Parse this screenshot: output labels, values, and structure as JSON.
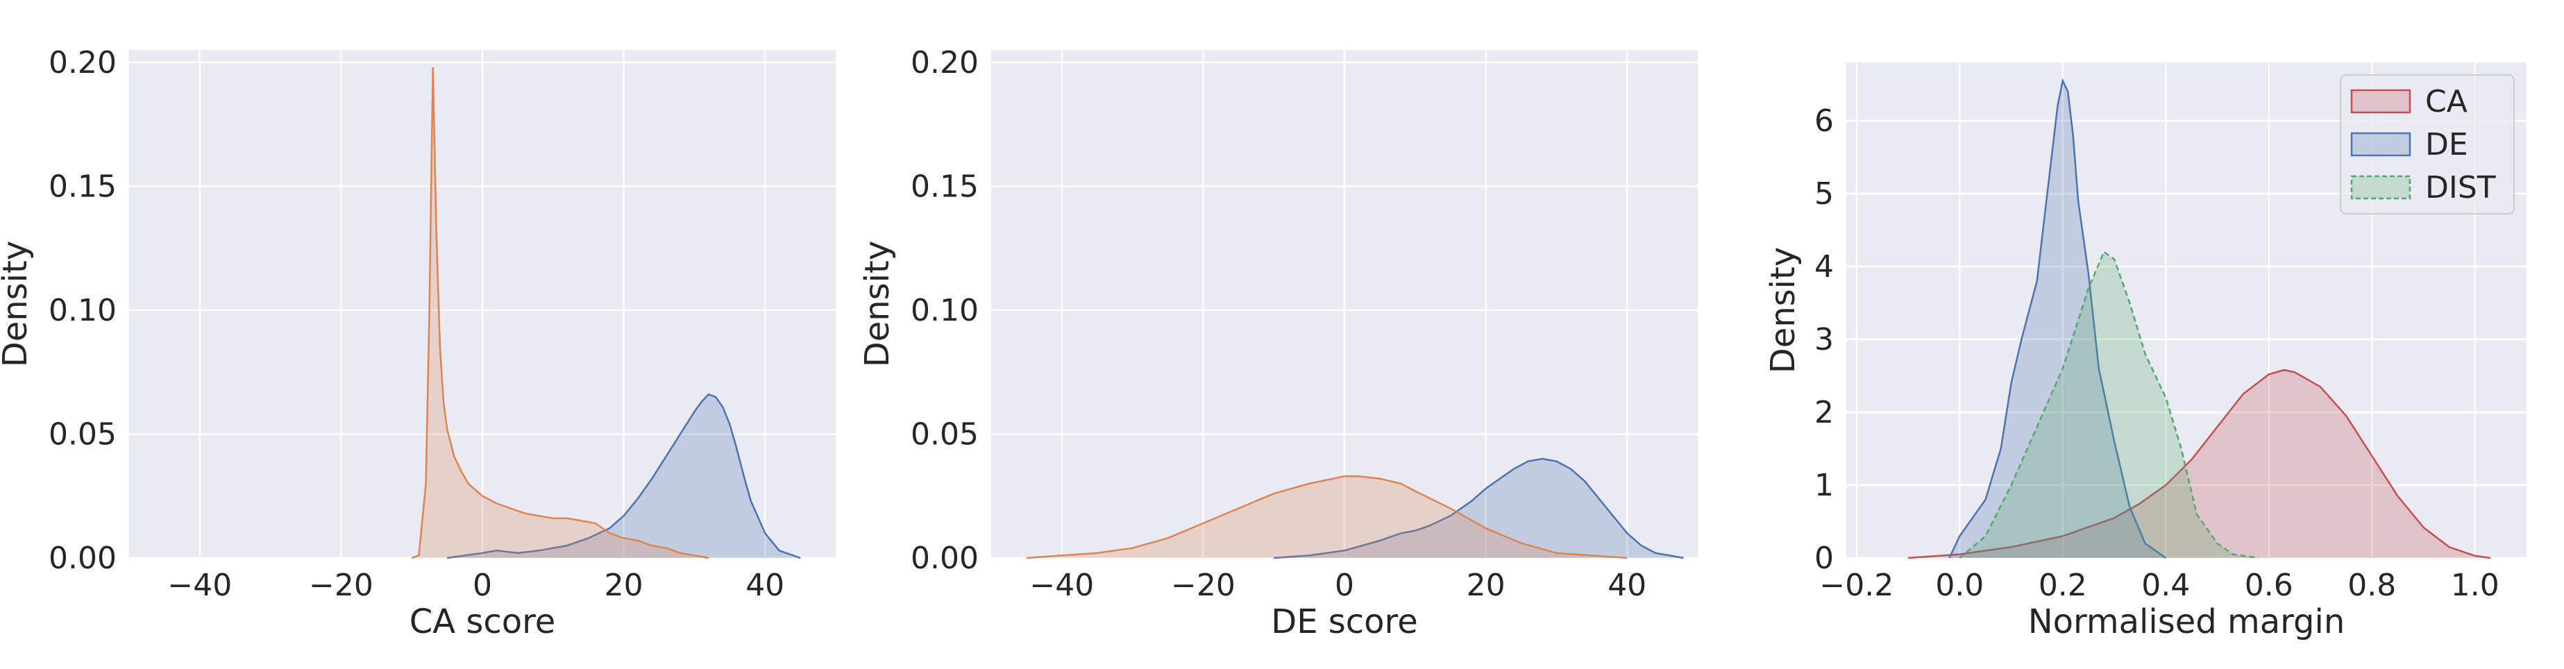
{
  "chart_data": [
    {
      "type": "area",
      "xlabel": "CA score",
      "ylabel": "Density",
      "xlim": [
        -50,
        50
      ],
      "ylim": [
        0,
        0.205
      ],
      "xticks": [
        -40,
        -20,
        0,
        20,
        40
      ],
      "xtick_labels": [
        "−40",
        "−20",
        "0",
        "20",
        "40"
      ],
      "yticks": [
        0,
        0.05,
        0.1,
        0.15,
        0.2
      ],
      "ytick_labels": [
        "0.00",
        "0.05",
        "0.10",
        "0.15",
        "0.20"
      ],
      "grid": true,
      "series": [
        {
          "color": "#4C72B0",
          "x": [
            -5,
            0,
            2,
            5,
            8,
            10,
            12,
            15,
            18,
            20,
            22,
            24,
            26,
            28,
            30,
            31,
            32,
            33,
            34,
            35,
            36,
            37,
            38,
            40,
            42,
            44,
            45
          ],
          "y": [
            0,
            0.002,
            0.003,
            0.002,
            0.003,
            0.004,
            0.005,
            0.008,
            0.012,
            0.017,
            0.024,
            0.032,
            0.041,
            0.05,
            0.059,
            0.063,
            0.066,
            0.065,
            0.061,
            0.054,
            0.044,
            0.033,
            0.023,
            0.01,
            0.003,
            0.001,
            0
          ]
        },
        {
          "color": "#DD8452",
          "x": [
            -10,
            -9,
            -8,
            -7.5,
            -7.2,
            -7,
            -6.8,
            -6.5,
            -6,
            -5.5,
            -5,
            -4,
            -3,
            -2,
            0,
            2,
            4,
            6,
            8,
            10,
            12,
            14,
            16,
            18,
            20,
            22,
            24,
            26,
            28,
            30,
            32
          ],
          "y": [
            0,
            0.001,
            0.03,
            0.1,
            0.16,
            0.198,
            0.17,
            0.13,
            0.085,
            0.063,
            0.052,
            0.041,
            0.035,
            0.03,
            0.025,
            0.022,
            0.02,
            0.018,
            0.017,
            0.016,
            0.016,
            0.015,
            0.014,
            0.01,
            0.008,
            0.007,
            0.005,
            0.004,
            0.002,
            0.001,
            0
          ]
        }
      ]
    },
    {
      "type": "area",
      "xlabel": "DE score",
      "ylabel": "Density",
      "xlim": [
        -50,
        50
      ],
      "ylim": [
        0,
        0.205
      ],
      "xticks": [
        -40,
        -20,
        0,
        20,
        40
      ],
      "xtick_labels": [
        "−40",
        "−20",
        "0",
        "20",
        "40"
      ],
      "yticks": [
        0,
        0.05,
        0.1,
        0.15,
        0.2
      ],
      "ytick_labels": [
        "0.00",
        "0.05",
        "0.10",
        "0.15",
        "0.20"
      ],
      "grid": true,
      "series": [
        {
          "color": "#4C72B0",
          "x": [
            -10,
            -5,
            0,
            5,
            8,
            10,
            12,
            15,
            18,
            20,
            22,
            24,
            26,
            28,
            30,
            32,
            34,
            36,
            38,
            40,
            42,
            44,
            46,
            48
          ],
          "y": [
            0,
            0.001,
            0.003,
            0.007,
            0.01,
            0.011,
            0.013,
            0.017,
            0.023,
            0.028,
            0.032,
            0.036,
            0.039,
            0.04,
            0.039,
            0.036,
            0.031,
            0.024,
            0.017,
            0.01,
            0.005,
            0.002,
            0.001,
            0
          ]
        },
        {
          "color": "#DD8452",
          "x": [
            -45,
            -40,
            -35,
            -30,
            -25,
            -20,
            -15,
            -10,
            -5,
            0,
            2,
            5,
            8,
            10,
            15,
            20,
            25,
            30,
            35,
            40
          ],
          "y": [
            0,
            0.001,
            0.002,
            0.004,
            0.008,
            0.014,
            0.02,
            0.026,
            0.03,
            0.033,
            0.033,
            0.032,
            0.03,
            0.027,
            0.02,
            0.012,
            0.006,
            0.002,
            0.001,
            0
          ]
        }
      ]
    },
    {
      "type": "area",
      "xlabel": "Normalised margin",
      "ylabel": "Density",
      "xlim": [
        -0.22,
        1.1
      ],
      "ylim": [
        0,
        6.8
      ],
      "xticks": [
        -0.2,
        0.0,
        0.2,
        0.4,
        0.6,
        0.8,
        1.0
      ],
      "xtick_labels": [
        "−0.2",
        "0.0",
        "0.2",
        "0.4",
        "0.6",
        "0.8",
        "1.0"
      ],
      "yticks": [
        0,
        1,
        2,
        3,
        4,
        5,
        6
      ],
      "ytick_labels": [
        "0",
        "1",
        "2",
        "3",
        "4",
        "5",
        "6"
      ],
      "grid": true,
      "legend": "top-right",
      "series": [
        {
          "name": "CA",
          "color": "#C44E52",
          "dashed": false,
          "x": [
            -0.1,
            0.0,
            0.1,
            0.2,
            0.3,
            0.35,
            0.4,
            0.45,
            0.5,
            0.55,
            0.6,
            0.63,
            0.65,
            0.7,
            0.75,
            0.8,
            0.85,
            0.9,
            0.95,
            1.0,
            1.03
          ],
          "y": [
            0,
            0.05,
            0.15,
            0.3,
            0.55,
            0.75,
            1.0,
            1.35,
            1.8,
            2.25,
            2.52,
            2.58,
            2.55,
            2.35,
            1.95,
            1.4,
            0.85,
            0.42,
            0.15,
            0.03,
            0
          ]
        },
        {
          "name": "DE",
          "color": "#4C72B0",
          "dashed": false,
          "x": [
            -0.02,
            0.0,
            0.05,
            0.08,
            0.1,
            0.12,
            0.15,
            0.17,
            0.19,
            0.2,
            0.21,
            0.22,
            0.23,
            0.25,
            0.27,
            0.3,
            0.33,
            0.36,
            0.4
          ],
          "y": [
            0,
            0.3,
            0.8,
            1.5,
            2.4,
            3.0,
            3.8,
            5.0,
            6.2,
            6.55,
            6.4,
            5.8,
            4.9,
            3.9,
            2.6,
            1.6,
            0.7,
            0.2,
            0
          ]
        },
        {
          "name": "DIST",
          "color": "#55A868",
          "dashed": true,
          "x": [
            0.0,
            0.05,
            0.1,
            0.15,
            0.2,
            0.25,
            0.28,
            0.3,
            0.33,
            0.36,
            0.4,
            0.43,
            0.46,
            0.5,
            0.53,
            0.58
          ],
          "y": [
            0,
            0.3,
            1.0,
            1.8,
            2.6,
            3.7,
            4.2,
            4.1,
            3.5,
            2.8,
            2.2,
            1.5,
            0.6,
            0.2,
            0.05,
            0
          ]
        }
      ]
    }
  ]
}
